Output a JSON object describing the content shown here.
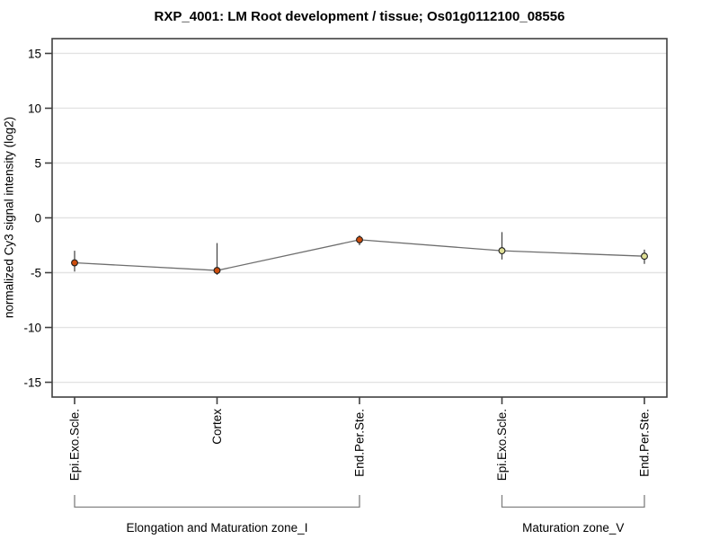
{
  "chart_data": {
    "type": "line",
    "title": "RXP_4001: LM Root development / tissue; Os01g0112100_08556",
    "ylabel": "normalized Cy3 signal intensity (log2)",
    "xlabel": "",
    "ylim": [
      -16.35,
      16.35
    ],
    "yticks": [
      15,
      10,
      5,
      0,
      -5,
      -10,
      -15
    ],
    "grid": true,
    "legend": false,
    "categories": [
      "Epi.Exo.Scle.",
      "Cortex",
      "End.Per.Ste.",
      "Epi.Exo.Scle.",
      "End.Per.Ste."
    ],
    "groups": [
      {
        "label": "Elongation and Maturation zone_I",
        "start": 0,
        "end": 2
      },
      {
        "label": "Maturation zone_V",
        "start": 3,
        "end": 4
      }
    ],
    "series": [
      {
        "name": "normalized Cy3 signal intensity (log2)",
        "values": [
          -4.1,
          -4.8,
          -2.0,
          -3.0,
          -3.5
        ],
        "error_high": [
          -3.0,
          -2.3,
          -1.6,
          -1.3,
          -2.9
        ],
        "error_low": [
          -4.9,
          -5.2,
          -2.5,
          -3.8,
          -4.2
        ],
        "marker_colors": [
          "#cc4d0d",
          "#cc4d0d",
          "#cc4d0d",
          "#e0e096",
          "#e0e096"
        ]
      }
    ],
    "colors": {
      "background": "#ffffff",
      "grid": "#e3e3e3",
      "frame": "#404040",
      "line": "#6e6e6e",
      "errorbar": "#4a4a4a",
      "bracket": "#808080",
      "marker_stroke": "#1f1f1f",
      "text": "#000000"
    }
  }
}
